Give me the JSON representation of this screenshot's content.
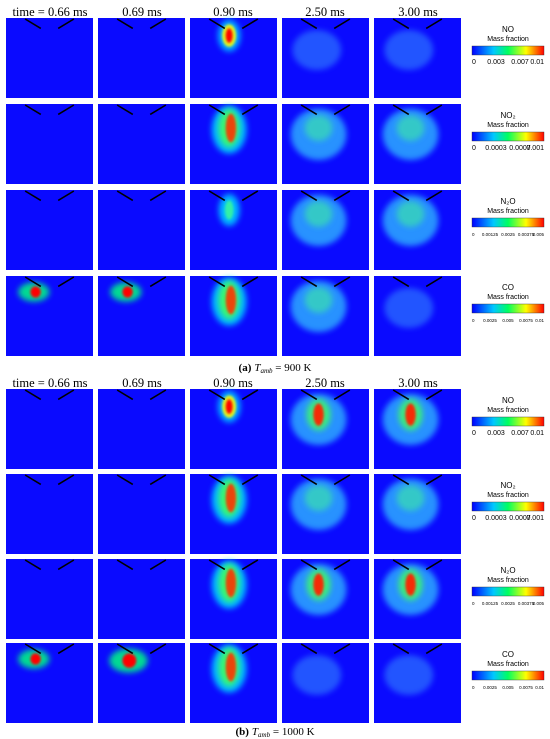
{
  "figures": [
    {
      "header": {
        "times": [
          "time = 0.66 ms",
          "0.69 ms",
          "0.90 ms",
          "2.50 ms",
          "3.00 ms"
        ]
      },
      "colorbars": [
        {
          "species": "NO",
          "label": "Mass fraction",
          "ticks": [
            "0",
            "0.003",
            "0.007",
            "0.01"
          ]
        },
        {
          "species": "NO₂",
          "label": "Mass fraction",
          "ticks": [
            "0",
            "0.0003",
            "0.0007",
            "0.001"
          ]
        },
        {
          "species": "N₂O",
          "label": "Mass fraction",
          "ticks": [
            "0",
            "0.00125",
            "0.0025",
            "0.00375",
            "0.005"
          ]
        },
        {
          "species": "CO",
          "label": "Mass fraction",
          "ticks": [
            "0",
            "0.0025",
            "0.005",
            "0.0075",
            "0.01"
          ]
        }
      ],
      "caption": {
        "label": "(a)",
        "variable": "T",
        "subscript": "amb",
        "text": " = 900 K"
      }
    },
    {
      "header": {
        "times": [
          "time = 0.66 ms",
          "0.69 ms",
          "0.90 ms",
          "2.50 ms",
          "3.00 ms"
        ]
      },
      "colorbars": [
        {
          "species": "NO",
          "label": "Mass fraction",
          "ticks": [
            "0",
            "0.003",
            "0.007",
            "0.01"
          ]
        },
        {
          "species": "NO₂",
          "label": "Mass fraction",
          "ticks": [
            "0",
            "0.0003",
            "0.0007",
            "0.001"
          ]
        },
        {
          "species": "N₂O",
          "label": "Mass fraction",
          "ticks": [
            "0",
            "0.00125",
            "0.0025",
            "0.00375",
            "0.005"
          ]
        },
        {
          "species": "CO",
          "label": "Mass fraction",
          "ticks": [
            "0",
            "0.0025",
            "0.005",
            "0.0075",
            "0.01"
          ]
        }
      ],
      "caption": {
        "label": "(b)",
        "variable": "T",
        "subscript": "amb",
        "text": " = 1000 K"
      }
    }
  ]
}
